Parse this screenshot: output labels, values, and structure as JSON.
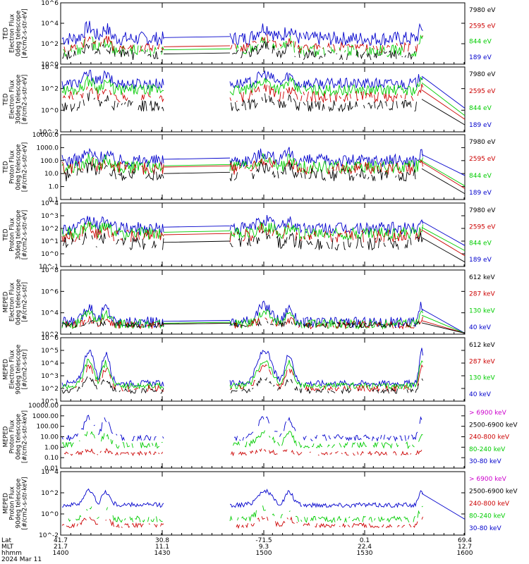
{
  "chart_data": {
    "type": "line",
    "date": "2024 Mar 11",
    "x_tick_labels": [
      "1400",
      "1430",
      "1500",
      "1530",
      "1600"
    ],
    "footer": {
      "row_labels": [
        "Lat",
        "MLT",
        "hhmm"
      ],
      "lat": [
        "41.7",
        "30.8",
        "-71.5",
        "0.1",
        "69.4"
      ],
      "mlt": [
        "21.7",
        "11.1",
        "9.3",
        "22.4",
        "12.7"
      ],
      "hhmm": [
        "1400",
        "1430",
        "1500",
        "1530",
        "1600"
      ]
    },
    "panels": [
      {
        "ylabel": [
          "TED",
          "Electron Flux",
          "0deg telescope",
          "[#/cm2-s-str-eV]"
        ],
        "yticks": [
          "10^0",
          "10^2",
          "10^4",
          "10^6"
        ],
        "scale": "log",
        "ylim_exp": [
          0,
          6
        ],
        "legend": [
          {
            "text": "7980 eV",
            "color": "#000000"
          },
          {
            "text": "2595 eV",
            "color": "#cc0000"
          },
          {
            "text": "844 eV",
            "color": "#00cc00"
          },
          {
            "text": "189 eV",
            "color": "#0000cc"
          }
        ],
        "series": [
          {
            "color": "#0000cc",
            "base": 2.5,
            "amp": 1.1,
            "noise": 0.7,
            "sparse": false,
            "tail": 0
          },
          {
            "color": "#00cc00",
            "base": 1.3,
            "amp": 1.0,
            "noise": 0.6,
            "sparse": true,
            "tail": 0
          },
          {
            "color": "#cc0000",
            "base": 1.6,
            "amp": 0.9,
            "noise": 0.5,
            "sparse": true,
            "tail": 0
          },
          {
            "color": "#000000",
            "base": 0.9,
            "amp": 0.9,
            "noise": 0.5,
            "sparse": true,
            "tail": 0
          }
        ]
      },
      {
        "ylabel": [
          "TED",
          "Electron Flux",
          "30deg telescope",
          "[#/cm2-s-str-eV]"
        ],
        "yticks": [
          "10^-2",
          "10^0",
          "10^2",
          "10^4"
        ],
        "scale": "log",
        "ylim_exp": [
          -2,
          5
        ],
        "legend": [
          {
            "text": "7980 eV",
            "color": "#000000"
          },
          {
            "text": "2595 eV",
            "color": "#cc0000"
          },
          {
            "text": "844 eV",
            "color": "#00cc00"
          },
          {
            "text": "189 eV",
            "color": "#0000cc"
          }
        ],
        "series": [
          {
            "color": "#0000cc",
            "base": 3.2,
            "amp": 1.0,
            "noise": 0.6,
            "sparse": false,
            "tail": 3.0
          },
          {
            "color": "#00cc00",
            "base": 2.5,
            "amp": 1.0,
            "noise": 0.6,
            "sparse": false,
            "tail": 2.2
          },
          {
            "color": "#cc0000",
            "base": 1.8,
            "amp": 0.9,
            "noise": 0.6,
            "sparse": true,
            "tail": 1.8
          },
          {
            "color": "#000000",
            "base": 0.8,
            "amp": 0.9,
            "noise": 0.6,
            "sparse": true,
            "tail": 1.2
          }
        ]
      },
      {
        "ylabel": [
          "TED",
          "Proton Flux",
          "0deg telescope",
          "[#/cm2-s-str-eV]"
        ],
        "yticks": [
          "0.1",
          "1.0",
          "10.0",
          "100.0",
          "1000.0",
          "10000.0"
        ],
        "scale": "log",
        "ylim_exp": [
          -1,
          4
        ],
        "legend": [
          {
            "text": "7980 eV",
            "color": "#000000"
          },
          {
            "text": "2595 eV",
            "color": "#cc0000"
          },
          {
            "text": "844 eV",
            "color": "#00cc00"
          },
          {
            "text": "189 eV",
            "color": "#0000cc"
          }
        ],
        "series": [
          {
            "color": "#0000cc",
            "base": 2.0,
            "amp": 0.6,
            "noise": 0.5,
            "sparse": false,
            "tail": 2.6
          },
          {
            "color": "#00cc00",
            "base": 1.5,
            "amp": 0.6,
            "noise": 0.5,
            "sparse": false,
            "tail": 1.8
          },
          {
            "color": "#cc0000",
            "base": 1.4,
            "amp": 0.6,
            "noise": 0.5,
            "sparse": true,
            "tail": 1.6
          },
          {
            "color": "#000000",
            "base": 0.9,
            "amp": 0.6,
            "noise": 0.5,
            "sparse": true,
            "tail": 1.2
          }
        ]
      },
      {
        "ylabel": [
          "TED",
          "Proton Flux",
          "30deg telescope",
          "[#/cm2-s-str-eV]"
        ],
        "yticks": [
          "10^-1",
          "10^0",
          "10^1",
          "10^2",
          "10^3",
          "10^4"
        ],
        "scale": "log",
        "ylim_exp": [
          -1,
          4
        ],
        "legend": [
          {
            "text": "7980 eV",
            "color": "#000000"
          },
          {
            "text": "2595 eV",
            "color": "#cc0000"
          },
          {
            "text": "844 eV",
            "color": "#00cc00"
          },
          {
            "text": "189 eV",
            "color": "#0000cc"
          }
        ],
        "series": [
          {
            "color": "#0000cc",
            "base": 2.0,
            "amp": 0.7,
            "noise": 0.5,
            "sparse": false,
            "tail": 2.4
          },
          {
            "color": "#00cc00",
            "base": 1.6,
            "amp": 0.6,
            "noise": 0.5,
            "sparse": false,
            "tail": 2.0
          },
          {
            "color": "#cc0000",
            "base": 1.4,
            "amp": 0.6,
            "noise": 0.5,
            "sparse": true,
            "tail": 1.6
          },
          {
            "color": "#000000",
            "base": 0.8,
            "amp": 0.6,
            "noise": 0.5,
            "sparse": true,
            "tail": 1.1
          }
        ]
      },
      {
        "ylabel": [
          "MEPED",
          "Electron Flux",
          "0deg telescope",
          "[#/cm2-s-str]"
        ],
        "yticks": [
          "10^2",
          "10^4",
          "10^6",
          "10^8"
        ],
        "scale": "log",
        "ylim_exp": [
          1,
          8
        ],
        "legend": [
          {
            "text": "612 keV",
            "color": "#000000"
          },
          {
            "text": "287 keV",
            "color": "#cc0000"
          },
          {
            "text": "130 keV",
            "color": "#00cc00"
          },
          {
            "text": "40 keV",
            "color": "#0000cc"
          }
        ],
        "series": [
          {
            "color": "#0000cc",
            "base": 2.3,
            "amp": 1.8,
            "noise": 0.6,
            "sparse": false,
            "tail": 2.6
          },
          {
            "color": "#00cc00",
            "base": 2.1,
            "amp": 1.2,
            "noise": 0.5,
            "sparse": false,
            "tail": 2.2
          },
          {
            "color": "#cc0000",
            "base": 2.0,
            "amp": 0.6,
            "noise": 0.4,
            "sparse": true,
            "tail": 2.1
          },
          {
            "color": "#000000",
            "base": 2.0,
            "amp": 0.3,
            "noise": 0.3,
            "sparse": true,
            "tail": 2.0
          }
        ]
      },
      {
        "ylabel": [
          "MEPED",
          "Electron Flux",
          "90deg telescope",
          "[#/cm2-s-str]"
        ],
        "yticks": [
          "10^1",
          "10^2",
          "10^3",
          "10^4",
          "10^5",
          "10^6"
        ],
        "scale": "log",
        "ylim_exp": [
          1,
          6
        ],
        "legend": [
          {
            "text": "612 keV",
            "color": "#000000"
          },
          {
            "text": "287 keV",
            "color": "#cc0000"
          },
          {
            "text": "130 keV",
            "color": "#00cc00"
          },
          {
            "text": "40 keV",
            "color": "#0000cc"
          }
        ],
        "series": [
          {
            "color": "#0000cc",
            "base": 2.4,
            "amp": 2.6,
            "noise": 0.25,
            "sparse": false,
            "tail": 0
          },
          {
            "color": "#00cc00",
            "base": 2.2,
            "amp": 2.0,
            "noise": 0.25,
            "sparse": false,
            "tail": 0
          },
          {
            "color": "#cc0000",
            "base": 2.0,
            "amp": 1.7,
            "noise": 0.25,
            "sparse": true,
            "tail": 0
          },
          {
            "color": "#000000",
            "base": 1.8,
            "amp": 1.0,
            "noise": 0.2,
            "sparse": true,
            "tail": 0
          }
        ]
      },
      {
        "ylabel": [
          "MEPED",
          "Proton Flux",
          "0deg telescope",
          "[#/cm2-s-str-keV]"
        ],
        "yticks": [
          "0.01",
          "0.10",
          "1.00",
          "10.00",
          "100.00",
          "1000.00",
          "10000.00"
        ],
        "scale": "log",
        "ylim_exp": [
          -2,
          4
        ],
        "legend": [
          {
            "text": "> 6900 keV",
            "color": "#cc00cc"
          },
          {
            "text": "2500-6900 keV",
            "color": "#000000"
          },
          {
            "text": "240-800 keV",
            "color": "#cc0000"
          },
          {
            "text": "80-240 keV",
            "color": "#00cc00"
          },
          {
            "text": "30-80 keV",
            "color": "#0000cc"
          }
        ],
        "series": [
          {
            "color": "#0000cc",
            "base": 0.9,
            "amp": 2.0,
            "noise": 0.3,
            "sparse": true,
            "tail": 0
          },
          {
            "color": "#00cc00",
            "base": 0.2,
            "amp": 1.2,
            "noise": 0.3,
            "sparse": true,
            "tail": 0
          },
          {
            "color": "#cc0000",
            "base": -0.6,
            "amp": 0.3,
            "noise": 0.2,
            "sparse": true,
            "tail": 0
          }
        ]
      },
      {
        "ylabel": [
          "MEPED",
          "Proton Flux",
          "90deg telescope",
          "[#/cm2-s-str-keV]"
        ],
        "yticks": [
          "10^-2",
          "10^0",
          "10^2",
          "10^4"
        ],
        "scale": "log",
        "ylim_exp": [
          -3,
          5
        ],
        "legend": [
          {
            "text": "> 6900 keV",
            "color": "#cc00cc"
          },
          {
            "text": "2500-6900 keV",
            "color": "#000000"
          },
          {
            "text": "240-800 keV",
            "color": "#cc0000"
          },
          {
            "text": "80-240 keV",
            "color": "#00cc00"
          },
          {
            "text": "30-80 keV",
            "color": "#0000cc"
          }
        ],
        "series": [
          {
            "color": "#0000cc",
            "base": 0.8,
            "amp": 1.8,
            "noise": 0.3,
            "sparse": false,
            "tail": 1.8
          },
          {
            "color": "#00cc00",
            "base": -1.0,
            "amp": 1.5,
            "noise": 0.4,
            "sparse": true,
            "tail": 0
          },
          {
            "color": "#cc0000",
            "base": -1.8,
            "amp": 1.0,
            "noise": 0.3,
            "sparse": true,
            "tail": 0
          }
        ]
      }
    ]
  }
}
